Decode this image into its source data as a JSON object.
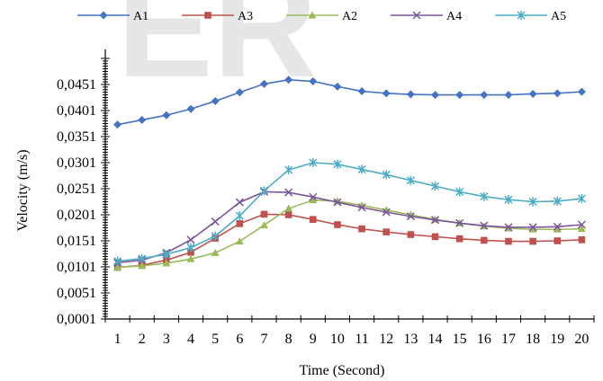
{
  "watermark": "ER",
  "chart_data": {
    "type": "line",
    "xlabel": "Time (Second)",
    "ylabel": "Velocity (m/s)",
    "x": [
      1,
      2,
      3,
      4,
      5,
      6,
      7,
      8,
      9,
      10,
      11,
      12,
      13,
      14,
      15,
      16,
      17,
      18,
      19,
      20
    ],
    "ylim": [
      0.0001,
      0.0501
    ],
    "yticks": [
      "0,0001",
      "0,0051",
      "0,0101",
      "0,0151",
      "0,0201",
      "0,0251",
      "0,0301",
      "0,0351",
      "0,0401",
      "0,0451"
    ],
    "ytick_values": [
      0.0001,
      0.0051,
      0.0101,
      0.0151,
      0.0201,
      0.0251,
      0.0301,
      0.0351,
      0.0401,
      0.0451
    ],
    "grid": false,
    "legend_position": "top",
    "series": [
      {
        "name": "A1",
        "color": "#4472c4",
        "marker": "diamond",
        "values": [
          0.0374,
          0.0383,
          0.0392,
          0.0404,
          0.0419,
          0.0436,
          0.0452,
          0.046,
          0.0457,
          0.0447,
          0.0438,
          0.0434,
          0.0432,
          0.0431,
          0.0431,
          0.0431,
          0.0431,
          0.0433,
          0.0434,
          0.0437
        ]
      },
      {
        "name": "A3",
        "color": "#c0504d",
        "marker": "square",
        "values": [
          0.01,
          0.0104,
          0.0114,
          0.0129,
          0.0156,
          0.0184,
          0.0202,
          0.0201,
          0.0192,
          0.0182,
          0.0174,
          0.0168,
          0.0163,
          0.0159,
          0.0155,
          0.0152,
          0.015,
          0.015,
          0.0151,
          0.0153
        ]
      },
      {
        "name": "A2",
        "color": "#9bbb59",
        "marker": "triangle",
        "values": [
          0.01,
          0.0103,
          0.0108,
          0.0116,
          0.0128,
          0.015,
          0.0181,
          0.0213,
          0.0229,
          0.0227,
          0.0219,
          0.021,
          0.0201,
          0.0192,
          0.0185,
          0.0179,
          0.0175,
          0.0173,
          0.0173,
          0.0174
        ]
      },
      {
        "name": "A4",
        "color": "#7c559e",
        "marker": "x",
        "values": [
          0.0109,
          0.0114,
          0.0128,
          0.0153,
          0.0188,
          0.0225,
          0.0245,
          0.0244,
          0.0235,
          0.0225,
          0.0215,
          0.0206,
          0.0198,
          0.0191,
          0.0185,
          0.018,
          0.0177,
          0.0177,
          0.0178,
          0.0182
        ]
      },
      {
        "name": "A5",
        "color": "#4bacc6",
        "marker": "star",
        "values": [
          0.0112,
          0.0117,
          0.0125,
          0.0138,
          0.016,
          0.0199,
          0.0247,
          0.0287,
          0.0301,
          0.0298,
          0.0288,
          0.0278,
          0.0267,
          0.0256,
          0.0245,
          0.0236,
          0.023,
          0.0226,
          0.0227,
          0.0232
        ]
      }
    ]
  }
}
